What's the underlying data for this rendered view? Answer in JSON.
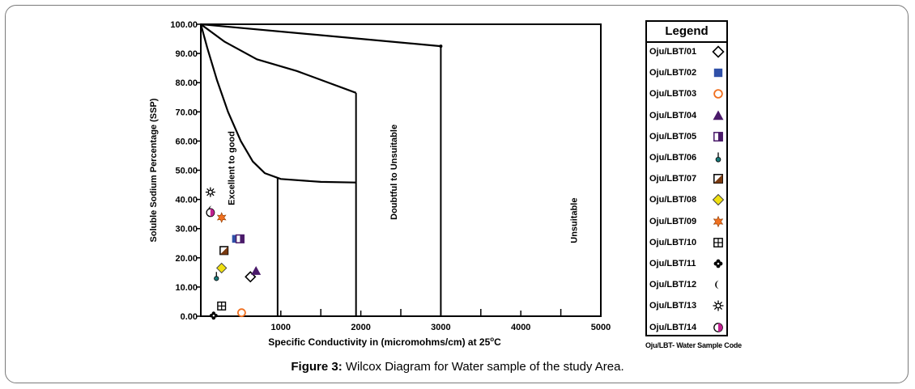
{
  "chart_data": {
    "type": "scatter",
    "xlabel_text": "Specific Conductivity in (micromohms/cm) at 25",
    "xlabel_sup": "o",
    "xlabel_unit": "C",
    "ylabel": "Soluble Sodium Percentage (SSP)",
    "xlim": [
      0,
      5000
    ],
    "ylim": [
      0,
      100
    ],
    "x_ticks": [
      1000,
      2000,
      3000,
      4000,
      5000
    ],
    "x_tick_labels": [
      "1000",
      "2000",
      "3000",
      "4000",
      "5000"
    ],
    "y_ticks": [
      0,
      10,
      20,
      30,
      40,
      50,
      60,
      70,
      80,
      90,
      100
    ],
    "y_tick_labels": [
      "0.00",
      "10.00",
      "20.00",
      "30.00",
      "40.00",
      "50.00",
      "60.00",
      "70.00",
      "80.00",
      "90.00",
      "100.00"
    ],
    "region_labels": [
      {
        "text": "Excellent to good",
        "x": 420,
        "y": 38
      },
      {
        "text": "Doubtful to Unsuitable",
        "x": 2450,
        "y": 33
      },
      {
        "text": "Unsuitable",
        "x": 4700,
        "y": 25
      }
    ],
    "boundaries": [
      {
        "name": "excellent-good-boundary",
        "points": [
          [
            0,
            100
          ],
          [
            80,
            92
          ],
          [
            200,
            81
          ],
          [
            340,
            70
          ],
          [
            500,
            60
          ],
          [
            650,
            53
          ],
          [
            800,
            49
          ],
          [
            1000,
            47
          ],
          [
            1500,
            46
          ],
          [
            1940,
            45.8
          ]
        ],
        "drop_to_zero_at": 960
      },
      {
        "name": "good-permissible-boundary",
        "points": [
          [
            0,
            100
          ],
          [
            300,
            94
          ],
          [
            700,
            88
          ],
          [
            1200,
            84
          ],
          [
            1940,
            76.5
          ]
        ],
        "drop_to_zero_at": 1940
      },
      {
        "name": "doubtful-unsuitable-boundary",
        "points": [
          [
            0,
            100
          ],
          [
            3000,
            92.5
          ]
        ],
        "drop_to_zero_at": 3000
      }
    ],
    "minor_ticks_x": [
      1500,
      2500,
      3500,
      4500
    ],
    "series": [
      {
        "name": "Oju/LBT/01",
        "marker": "diamond-open",
        "color": "#000000",
        "x": 620,
        "y": 13.5
      },
      {
        "name": "Oju/LBT/02",
        "marker": "square",
        "color": "#3050a8",
        "x": 440,
        "y": 26.5
      },
      {
        "name": "Oju/LBT/03",
        "marker": "circle-open",
        "color": "#f07020",
        "x": 510,
        "y": 1.2
      },
      {
        "name": "Oju/LBT/04",
        "marker": "triangle",
        "color": "#4a1a6a",
        "x": 690,
        "y": 15.5
      },
      {
        "name": "Oju/LBT/05",
        "marker": "half-square",
        "color": "#4a1a6a",
        "x": 490,
        "y": 26.5
      },
      {
        "name": "Oju/LBT/06",
        "marker": "drop",
        "color": "#1a7a7a",
        "x": 195,
        "y": 13.5
      },
      {
        "name": "Oju/LBT/07",
        "marker": "diag-square",
        "color": "#7a3a10",
        "x": 290,
        "y": 22.5
      },
      {
        "name": "Oju/LBT/08",
        "marker": "diamond",
        "color": "#f0e010",
        "x": 260,
        "y": 16.5
      },
      {
        "name": "Oju/LBT/09",
        "marker": "star6",
        "color": "#f07020",
        "x": 260,
        "y": 33.8
      },
      {
        "name": "Oju/LBT/10",
        "marker": "grid-square",
        "color": "#000000",
        "x": 260,
        "y": 3.5
      },
      {
        "name": "Oju/LBT/11",
        "marker": "cross-blob",
        "color": "#000000",
        "x": 160,
        "y": 0.2
      },
      {
        "name": "Oju/LBT/12",
        "marker": "crescent",
        "color": "#000000",
        "x": 130,
        "y": 36.5
      },
      {
        "name": "Oju/LBT/13",
        "marker": "sun",
        "color": "#000000",
        "x": 120,
        "y": 42.5
      },
      {
        "name": "Oju/LBT/14",
        "marker": "half-circle",
        "color": "#c02090",
        "x": 120,
        "y": 35.5
      }
    ]
  },
  "legend": {
    "title": "Legend",
    "items": [
      {
        "label": "Oju/LBT/01",
        "marker": "diamond-open",
        "color": "#000000"
      },
      {
        "label": "Oju/LBT/02",
        "marker": "square",
        "color": "#3050a8"
      },
      {
        "label": "Oju/LBT/03",
        "marker": "circle-open",
        "color": "#f07020"
      },
      {
        "label": "Oju/LBT/04",
        "marker": "triangle",
        "color": "#4a1a6a"
      },
      {
        "label": "Oju/LBT/05",
        "marker": "half-square",
        "color": "#4a1a6a"
      },
      {
        "label": "Oju/LBT/06",
        "marker": "drop",
        "color": "#1a7a7a"
      },
      {
        "label": "Oju/LBT/07",
        "marker": "diag-square",
        "color": "#7a3a10"
      },
      {
        "label": "Oju/LBT/08",
        "marker": "diamond",
        "color": "#f0e010"
      },
      {
        "label": "Oju/LBT/09",
        "marker": "star6",
        "color": "#f07020"
      },
      {
        "label": "Oju/LBT/10",
        "marker": "grid-square",
        "color": "#000000"
      },
      {
        "label": "Oju/LBT/11",
        "marker": "cross-blob",
        "color": "#000000"
      },
      {
        "label": "Oju/LBT/12",
        "marker": "crescent",
        "color": "#000000"
      },
      {
        "label": "Oju/LBT/13",
        "marker": "sun",
        "color": "#000000"
      },
      {
        "label": "Oju/LBT/14",
        "marker": "half-circle",
        "color": "#c02090"
      }
    ],
    "note": "Oju/LBT- Water Sample Code"
  },
  "caption": {
    "label": "Figure 3:",
    "text": " Wilcox Diagram for Water sample of the study Area."
  }
}
